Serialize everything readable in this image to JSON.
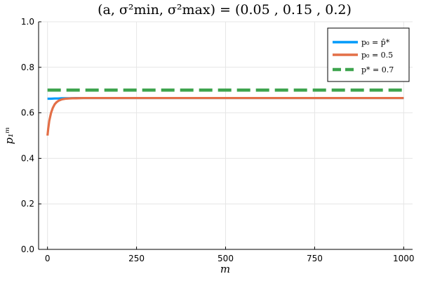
{
  "chart_data": {
    "type": "line",
    "title": "(a, σ²min, σ²max) = (0.05 , 0.15 , 0.2)",
    "xlabel": "m",
    "ylabel": "p₁ᵐ",
    "xlim": [
      -25,
      1025
    ],
    "ylim": [
      0,
      1
    ],
    "x_ticks": [
      0,
      250,
      500,
      750,
      1000
    ],
    "y_ticks": [
      0.0,
      0.2,
      0.4,
      0.6,
      0.8,
      1.0
    ],
    "x_tick_labels": [
      "0",
      "250",
      "500",
      "750",
      "1000"
    ],
    "y_tick_labels": [
      "0.0",
      "0.2",
      "0.4",
      "0.6",
      "0.8",
      "1.0"
    ],
    "grid": true,
    "legend_position": "top-right",
    "series": [
      {
        "name": "p₀ = p̂*",
        "color": "#009AFA",
        "style": "solid",
        "x": [
          0,
          10,
          20,
          30,
          40,
          50,
          60,
          80,
          100,
          200,
          400,
          600,
          800,
          1000
        ],
        "y": [
          0.662,
          0.662,
          0.663,
          0.663,
          0.664,
          0.664,
          0.664,
          0.665,
          0.665,
          0.665,
          0.665,
          0.665,
          0.665,
          0.665
        ]
      },
      {
        "name": "p₀ = 0.5",
        "color": "#E36F47",
        "style": "solid",
        "x": [
          0,
          2,
          5,
          10,
          15,
          20,
          25,
          30,
          35,
          40,
          50,
          60,
          70,
          80,
          100,
          150,
          200,
          400,
          600,
          800,
          1000
        ],
        "y": [
          0.5,
          0.53,
          0.565,
          0.6,
          0.622,
          0.637,
          0.646,
          0.652,
          0.656,
          0.659,
          0.662,
          0.663,
          0.664,
          0.664,
          0.665,
          0.665,
          0.665,
          0.665,
          0.665,
          0.665,
          0.665
        ]
      },
      {
        "name": "p* = 0.7",
        "color": "#3EA44E",
        "style": "dashed",
        "x": [
          0,
          1000
        ],
        "y": [
          0.7,
          0.7
        ]
      }
    ]
  }
}
